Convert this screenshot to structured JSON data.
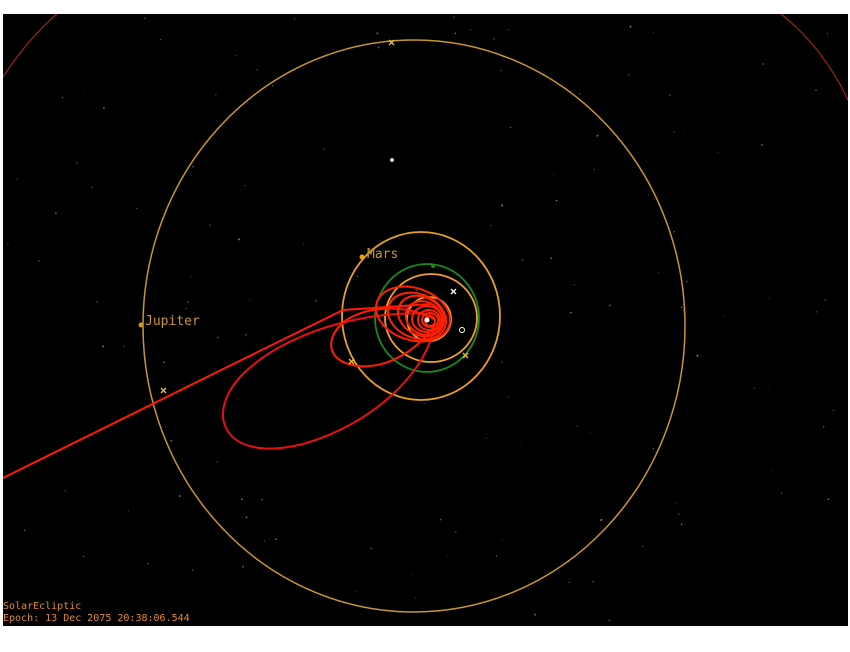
{
  "view": {
    "coordinate_frame": "SolarEcliptic",
    "epoch_label": "Epoch: 13 Dec 2075 20:38:06.544"
  },
  "bodies": {
    "mars": {
      "label": "Mars",
      "orbit_color": "#e8a020"
    },
    "jupiter": {
      "label": "Jupiter",
      "orbit_color": "#c8962e"
    }
  },
  "colors": {
    "background": "#000000",
    "trajectory": "#ff1a00",
    "earth_orbit": "#1a8a1a",
    "inner_orbit": "#f0a030",
    "marker": "#e8c040",
    "hud_text": "#e08a3a"
  }
}
